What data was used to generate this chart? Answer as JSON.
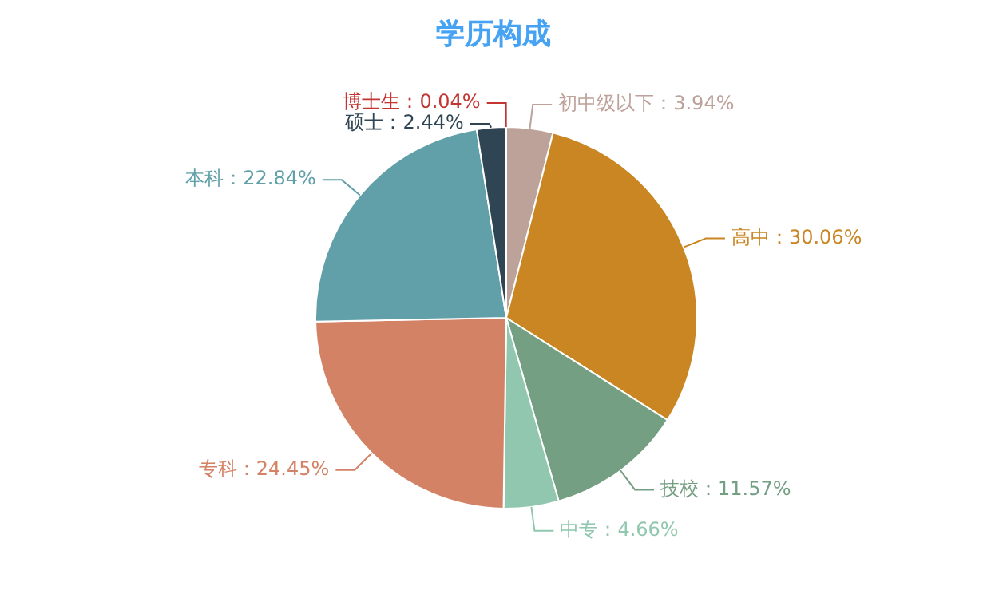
{
  "chart_data": {
    "type": "pie",
    "title": "学历构成",
    "categories": [
      "初中级以下",
      "高中",
      "技校",
      "中专",
      "专科",
      "本科",
      "硕士",
      "博士生"
    ],
    "values": [
      3.94,
      30.06,
      11.57,
      4.66,
      24.45,
      22.84,
      2.44,
      0.04
    ],
    "colors": [
      "#bda29a",
      "#ca8622",
      "#749f83",
      "#91c7ae",
      "#d48265",
      "#61a0a8",
      "#2f4554",
      "#c23531"
    ],
    "value_labels": [
      "：3.94%",
      "：30.06%",
      "：11.57%",
      "：4.66%",
      "：24.45%",
      "：22.84%",
      "：2.44%",
      "：0.04%"
    ],
    "legend": false
  }
}
